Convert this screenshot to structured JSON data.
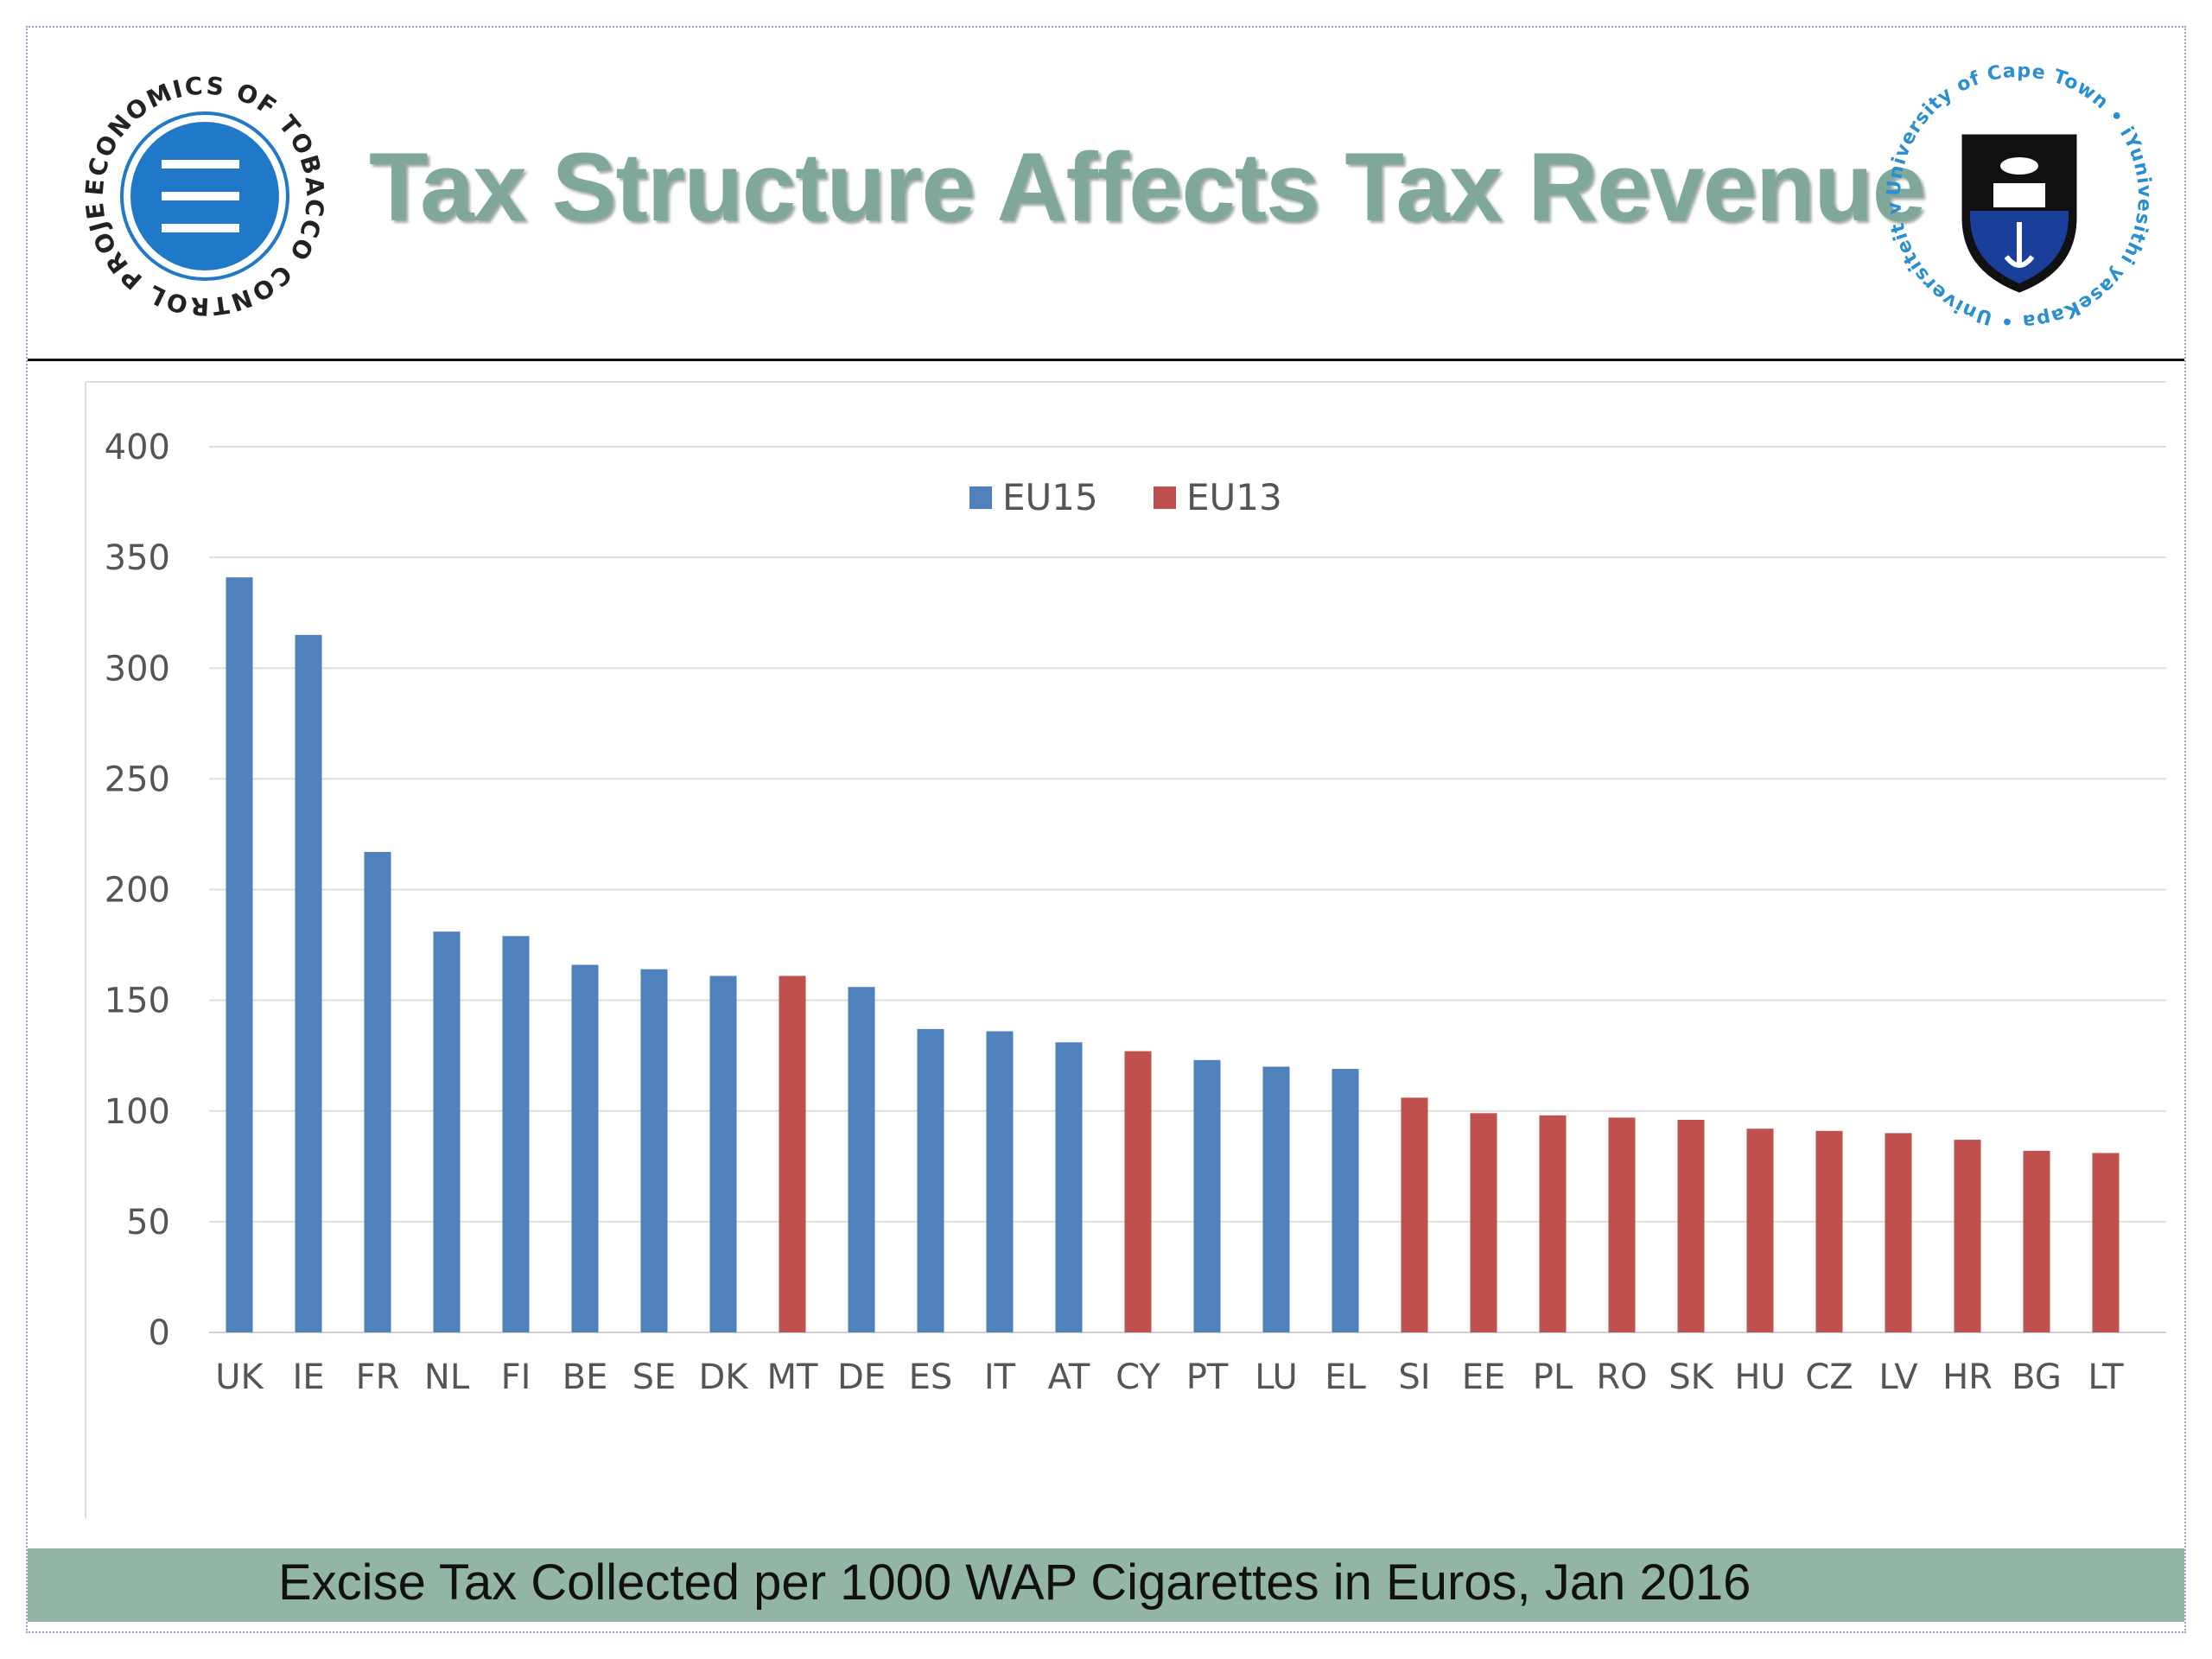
{
  "header": {
    "title": "Tax Structure Affects Tax Revenue",
    "logo_left": {
      "icon": "economics-of-tobacco-control-logo",
      "ring_text": "ECONOMICS OF TOBACCO CONTROL PROJECT •"
    },
    "logo_right": {
      "icon": "university-of-cape-town-crest",
      "ring_text": "University of Cape Town • iYunivesithi yaseKapa • Universiteit van Kaapstad •"
    }
  },
  "caption": "Excise Tax Collected per 1000 WAP Cigarettes in Euros, Jan 2016",
  "colors": {
    "eu15": "#4f81bd",
    "eu13": "#c0504d",
    "title": "#7fa89a",
    "caption_bar": "#93b5a6"
  },
  "chart_data": {
    "type": "bar",
    "title": "",
    "xlabel": "",
    "ylabel": "",
    "ylim": [
      0,
      400
    ],
    "yticks": [
      0,
      50,
      100,
      150,
      200,
      250,
      300,
      350,
      400
    ],
    "grid": true,
    "legend": {
      "position": "top-center",
      "entries": [
        "EU15",
        "EU13"
      ]
    },
    "categories": [
      "UK",
      "IE",
      "FR",
      "NL",
      "FI",
      "BE",
      "SE",
      "DK",
      "MT",
      "DE",
      "ES",
      "IT",
      "AT",
      "CY",
      "PT",
      "LU",
      "EL",
      "SI",
      "EE",
      "PL",
      "RO",
      "SK",
      "HU",
      "CZ",
      "LV",
      "HR",
      "BG",
      "LT"
    ],
    "values": [
      341,
      315,
      217,
      181,
      179,
      166,
      164,
      161,
      161,
      156,
      137,
      136,
      131,
      127,
      123,
      120,
      119,
      106,
      99,
      98,
      97,
      96,
      92,
      91,
      90,
      87,
      82,
      81
    ],
    "groups": [
      "EU15",
      "EU15",
      "EU15",
      "EU15",
      "EU15",
      "EU15",
      "EU15",
      "EU15",
      "EU13",
      "EU15",
      "EU15",
      "EU15",
      "EU15",
      "EU13",
      "EU15",
      "EU15",
      "EU15",
      "EU13",
      "EU13",
      "EU13",
      "EU13",
      "EU13",
      "EU13",
      "EU13",
      "EU13",
      "EU13",
      "EU13",
      "EU13"
    ]
  }
}
